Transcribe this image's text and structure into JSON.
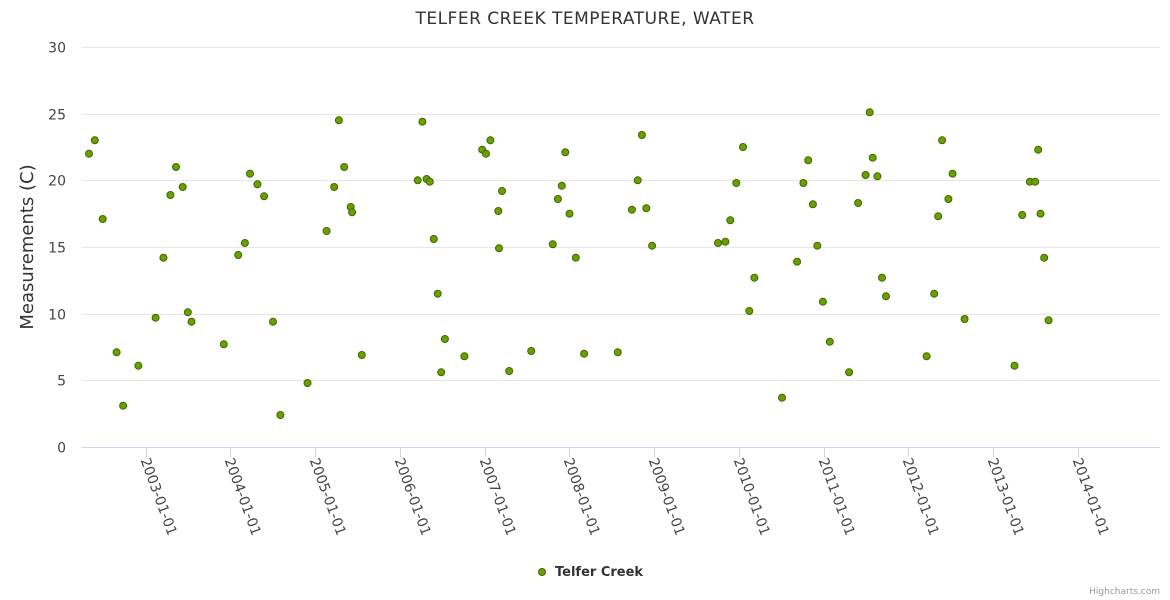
{
  "chart_data": {
    "type": "scatter",
    "title": "TELFER CREEK TEMPERATURE, WATER",
    "xlabel": "",
    "ylabel": "Measurements (C)",
    "ylim": [
      0,
      30
    ],
    "yticks": [
      0,
      5,
      10,
      15,
      20,
      25,
      30
    ],
    "xlim": [
      "2002-04-01",
      "2014-12-20"
    ],
    "xticks": [
      "2003-01-01",
      "2004-01-01",
      "2005-01-01",
      "2006-01-01",
      "2007-01-01",
      "2008-01-01",
      "2009-01-01",
      "2010-01-01",
      "2011-01-01",
      "2012-01-01",
      "2013-01-01",
      "2014-01-01"
    ],
    "grid": true,
    "legend_position": "bottom-center",
    "series": [
      {
        "name": "Telfer Creek",
        "color": "#6aa100",
        "marker_stroke": "#3f6600",
        "points": [
          {
            "x": "2002-05-01",
            "y": 22.0
          },
          {
            "x": "2002-05-26",
            "y": 23.0
          },
          {
            "x": "2002-06-29",
            "y": 17.1
          },
          {
            "x": "2002-08-28",
            "y": 7.1
          },
          {
            "x": "2002-09-25",
            "y": 3.1
          },
          {
            "x": "2002-11-30",
            "y": 6.1
          },
          {
            "x": "2003-02-12",
            "y": 9.7
          },
          {
            "x": "2003-03-18",
            "y": 14.2
          },
          {
            "x": "2003-04-17",
            "y": 18.9
          },
          {
            "x": "2003-05-11",
            "y": 21.0
          },
          {
            "x": "2003-06-09",
            "y": 19.5
          },
          {
            "x": "2003-07-01",
            "y": 10.1
          },
          {
            "x": "2003-07-17",
            "y": 9.4
          },
          {
            "x": "2003-12-03",
            "y": 7.7
          },
          {
            "x": "2004-02-03",
            "y": 14.4
          },
          {
            "x": "2004-03-03",
            "y": 15.3
          },
          {
            "x": "2004-03-25",
            "y": 20.5
          },
          {
            "x": "2004-04-26",
            "y": 19.7
          },
          {
            "x": "2004-05-25",
            "y": 18.8
          },
          {
            "x": "2004-07-02",
            "y": 9.4
          },
          {
            "x": "2004-08-03",
            "y": 2.4
          },
          {
            "x": "2004-11-28",
            "y": 4.8
          },
          {
            "x": "2005-02-18",
            "y": 16.2
          },
          {
            "x": "2005-03-23",
            "y": 19.5
          },
          {
            "x": "2005-04-12",
            "y": 24.5
          },
          {
            "x": "2005-05-05",
            "y": 21.0
          },
          {
            "x": "2005-06-02",
            "y": 18.0
          },
          {
            "x": "2005-06-08",
            "y": 17.6
          },
          {
            "x": "2005-07-20",
            "y": 6.9
          },
          {
            "x": "2006-03-18",
            "y": 20.0
          },
          {
            "x": "2006-04-07",
            "y": 24.4
          },
          {
            "x": "2006-04-25",
            "y": 20.1
          },
          {
            "x": "2006-05-09",
            "y": 19.9
          },
          {
            "x": "2006-05-26",
            "y": 15.6
          },
          {
            "x": "2006-06-12",
            "y": 11.5
          },
          {
            "x": "2006-06-27",
            "y": 5.6
          },
          {
            "x": "2006-07-13",
            "y": 8.1
          },
          {
            "x": "2006-10-05",
            "y": 6.8
          },
          {
            "x": "2006-12-21",
            "y": 22.3
          },
          {
            "x": "2007-01-06",
            "y": 22.0
          },
          {
            "x": "2007-01-25",
            "y": 23.0
          },
          {
            "x": "2007-02-28",
            "y": 17.7
          },
          {
            "x": "2007-03-03",
            "y": 14.9
          },
          {
            "x": "2007-03-16",
            "y": 19.2
          },
          {
            "x": "2007-04-16",
            "y": 5.7
          },
          {
            "x": "2007-07-20",
            "y": 7.2
          },
          {
            "x": "2007-10-21",
            "y": 15.2
          },
          {
            "x": "2007-11-12",
            "y": 18.6
          },
          {
            "x": "2007-11-29",
            "y": 19.6
          },
          {
            "x": "2007-12-14",
            "y": 22.1
          },
          {
            "x": "2008-01-01",
            "y": 17.5
          },
          {
            "x": "2008-01-28",
            "y": 14.2
          },
          {
            "x": "2008-03-04",
            "y": 7.0
          },
          {
            "x": "2008-07-27",
            "y": 7.1
          },
          {
            "x": "2008-09-26",
            "y": 17.8
          },
          {
            "x": "2008-10-21",
            "y": 20.0
          },
          {
            "x": "2008-11-08",
            "y": 23.4
          },
          {
            "x": "2008-11-27",
            "y": 17.9
          },
          {
            "x": "2008-12-22",
            "y": 15.1
          },
          {
            "x": "2009-10-02",
            "y": 15.3
          },
          {
            "x": "2009-11-03",
            "y": 15.4
          },
          {
            "x": "2009-11-24",
            "y": 17.0
          },
          {
            "x": "2009-12-20",
            "y": 19.8
          },
          {
            "x": "2010-01-18",
            "y": 22.5
          },
          {
            "x": "2010-02-14",
            "y": 10.2
          },
          {
            "x": "2010-03-08",
            "y": 12.7
          },
          {
            "x": "2010-07-05",
            "y": 3.7
          },
          {
            "x": "2010-09-08",
            "y": 13.9
          },
          {
            "x": "2010-10-05",
            "y": 19.8
          },
          {
            "x": "2010-10-26",
            "y": 21.5
          },
          {
            "x": "2010-11-15",
            "y": 18.2
          },
          {
            "x": "2010-12-04",
            "y": 15.1
          },
          {
            "x": "2010-12-28",
            "y": 10.9
          },
          {
            "x": "2011-01-27",
            "y": 7.9
          },
          {
            "x": "2011-04-20",
            "y": 5.6
          },
          {
            "x": "2011-05-29",
            "y": 18.3
          },
          {
            "x": "2011-06-30",
            "y": 20.4
          },
          {
            "x": "2011-07-18",
            "y": 25.1
          },
          {
            "x": "2011-07-31",
            "y": 21.7
          },
          {
            "x": "2011-08-20",
            "y": 20.3
          },
          {
            "x": "2011-09-09",
            "y": 12.7
          },
          {
            "x": "2011-09-26",
            "y": 11.3
          },
          {
            "x": "2012-03-19",
            "y": 6.8
          },
          {
            "x": "2012-04-21",
            "y": 11.5
          },
          {
            "x": "2012-05-08",
            "y": 17.3
          },
          {
            "x": "2012-05-25",
            "y": 23.0
          },
          {
            "x": "2012-06-21",
            "y": 18.6
          },
          {
            "x": "2012-07-09",
            "y": 20.5
          },
          {
            "x": "2012-08-30",
            "y": 9.6
          },
          {
            "x": "2013-04-02",
            "y": 6.1
          },
          {
            "x": "2013-05-05",
            "y": 17.4
          },
          {
            "x": "2013-06-07",
            "y": 19.9
          },
          {
            "x": "2013-06-30",
            "y": 19.9
          },
          {
            "x": "2013-07-13",
            "y": 22.3
          },
          {
            "x": "2013-07-23",
            "y": 17.5
          },
          {
            "x": "2013-08-08",
            "y": 14.2
          },
          {
            "x": "2013-08-27",
            "y": 9.5
          }
        ]
      }
    ]
  },
  "credits": "Highcharts.com"
}
